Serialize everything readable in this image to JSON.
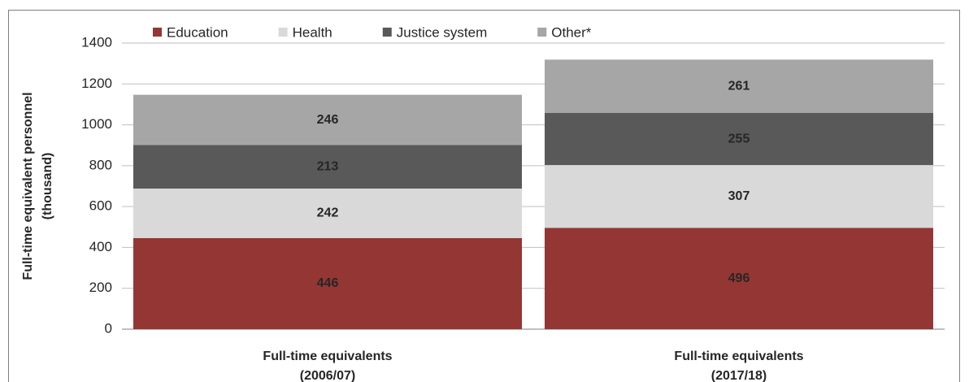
{
  "chart_data": {
    "type": "stacked-bar",
    "y_label": [
      "Full-time equivalent personnel",
      "(thousand)"
    ],
    "categories": [
      [
        "Full-time equivalents",
        "(2006/07)"
      ],
      [
        "Full-time equivalents",
        "(2017/18)"
      ]
    ],
    "series": [
      {
        "name": "Education",
        "color": "#943634",
        "label_color": "#ffffff",
        "values": [
          446,
          496
        ]
      },
      {
        "name": "Health",
        "color": "#d9d9d9",
        "label_color": "#404040",
        "values": [
          242,
          307
        ]
      },
      {
        "name": "Justice system",
        "color": "#595959",
        "label_color": "#ffffff",
        "values": [
          213,
          255
        ]
      },
      {
        "name": "Other*",
        "color": "#a6a6a6",
        "label_color": "#ffffff",
        "values": [
          246,
          261
        ]
      }
    ],
    "ylim": [
      0,
      1400
    ],
    "yticks": [
      0,
      200,
      400,
      600,
      800,
      1000,
      1200,
      1400
    ],
    "grid": true,
    "legend": "top"
  }
}
